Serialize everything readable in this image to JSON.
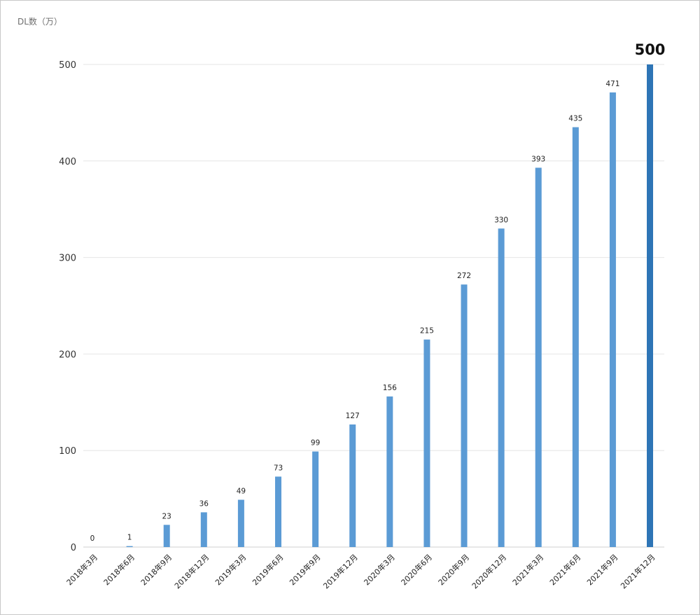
{
  "chart_data": {
    "type": "bar",
    "ylabel": "DL数（万）",
    "ylim": [
      0,
      500
    ],
    "yticks": [
      0,
      100,
      200,
      300,
      400,
      500
    ],
    "grid": true,
    "categories": [
      "2018年3月",
      "2018年6月",
      "2018年9月",
      "2018年12月",
      "2019年3月",
      "2019年6月",
      "2019年9月",
      "2019年12月",
      "2020年3月",
      "2020年6月",
      "2020年9月",
      "2020年12月",
      "2021年3月",
      "2021年6月",
      "2021年9月",
      "2021年12月"
    ],
    "values": [
      0,
      1,
      23,
      36,
      49,
      73,
      99,
      127,
      156,
      215,
      272,
      330,
      393,
      435,
      471,
      500
    ],
    "highlight_index": 15,
    "colors": {
      "bar": "#5b9bd5",
      "highlight": "#2e75b6",
      "grid": "#e6e6e6",
      "axis": "#cfcfcf"
    }
  }
}
